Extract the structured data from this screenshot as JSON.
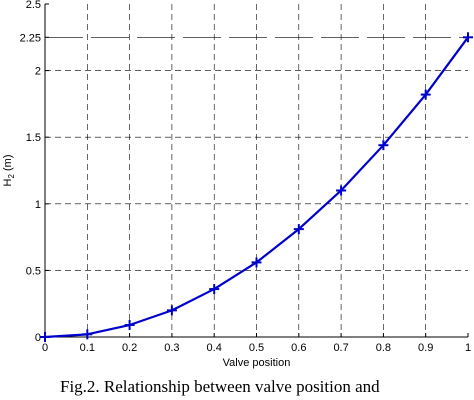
{
  "caption": "Fig.2. Relationship between valve position and",
  "chart_data": {
    "type": "line",
    "xlabel": "Valve position",
    "ylabel": "H",
    "ylabel_sub": "2",
    "ylabel_unit": " (m)",
    "xlim": [
      0,
      1
    ],
    "ylim": [
      0,
      2.5
    ],
    "x_ticks": [
      0,
      0.1,
      0.2,
      0.3,
      0.4,
      0.5,
      0.6,
      0.7,
      0.8,
      0.9,
      1
    ],
    "x_tick_labels": [
      "0",
      "0.1",
      "0.2",
      "0.3",
      "0.4",
      "0.5",
      "0.6",
      "0.7",
      "0.8",
      "0.9",
      "1"
    ],
    "y_ticks": [
      0,
      0.5,
      1,
      1.5,
      2,
      2.25,
      2.5
    ],
    "y_tick_labels": [
      "0",
      "0.5",
      "1",
      "1.5",
      "2",
      "2.25",
      "2.5"
    ],
    "grid": true,
    "reference_line": {
      "y": 2.25,
      "style": "long-dash"
    },
    "series": [
      {
        "color": "#0000cc",
        "marker": "plus",
        "x": [
          0,
          0.1,
          0.2,
          0.3,
          0.4,
          0.5,
          0.6,
          0.7,
          0.8,
          0.9,
          1
        ],
        "y": [
          0,
          0.02,
          0.09,
          0.2,
          0.36,
          0.56,
          0.81,
          1.1,
          1.44,
          1.82,
          2.25
        ]
      }
    ]
  }
}
